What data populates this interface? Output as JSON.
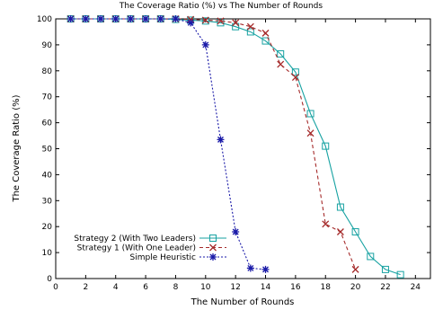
{
  "chart_data": {
    "type": "line",
    "title": "The Coverage Ratio (%) vs The Number of Rounds",
    "xlabel": "The Number of Rounds",
    "ylabel": "The Coverage Ratio (%)",
    "xlim": [
      0,
      25
    ],
    "ylim": [
      0,
      100
    ],
    "xticks": [
      "0",
      "2",
      "4",
      "6",
      "8",
      "10",
      "12",
      "14",
      "16",
      "18",
      "20",
      "22",
      "24"
    ],
    "yticks": [
      "0",
      "10",
      "20",
      "30",
      "40",
      "50",
      "60",
      "70",
      "80",
      "90",
      "100"
    ],
    "grid": false,
    "legend_position": "bottom-left",
    "series": [
      {
        "name": "Strategy 2 (With Two Leaders)",
        "color": "#17a2a2",
        "marker": "square",
        "line": "solid",
        "x": [
          1,
          2,
          3,
          4,
          5,
          6,
          7,
          8,
          9,
          10,
          11,
          12,
          13,
          14,
          15,
          16,
          17,
          18,
          19,
          20,
          21,
          22,
          23
        ],
        "y": [
          100,
          100,
          100,
          100,
          100,
          100,
          100,
          99.8,
          99.5,
          99.2,
          98.5,
          97,
          95,
          91.5,
          86.5,
          79.5,
          63.5,
          51,
          27.5,
          18,
          8.5,
          3.5,
          1.5
        ]
      },
      {
        "name": "Strategy 1 (With One Leader)",
        "color": "#a52a2a",
        "marker": "x",
        "line": "dashed",
        "x": [
          1,
          2,
          3,
          4,
          5,
          6,
          7,
          8,
          9,
          10,
          11,
          12,
          13,
          14,
          15,
          16,
          17,
          18,
          19,
          20
        ],
        "y": [
          100,
          100,
          100,
          100,
          100,
          100,
          100,
          100,
          99.8,
          99.5,
          99.2,
          98.5,
          97,
          94.5,
          82.5,
          77.5,
          56,
          21,
          18,
          3.5
        ]
      },
      {
        "name": "Simple Heuristic",
        "color": "#1a1aa8",
        "marker": "star",
        "line": "dotted",
        "x": [
          1,
          2,
          3,
          4,
          5,
          6,
          7,
          8,
          9,
          10,
          11,
          12,
          13,
          14
        ],
        "y": [
          100,
          100,
          100,
          100,
          100,
          100,
          100,
          100,
          98.5,
          90,
          53.5,
          18,
          4,
          3.5
        ]
      }
    ]
  }
}
